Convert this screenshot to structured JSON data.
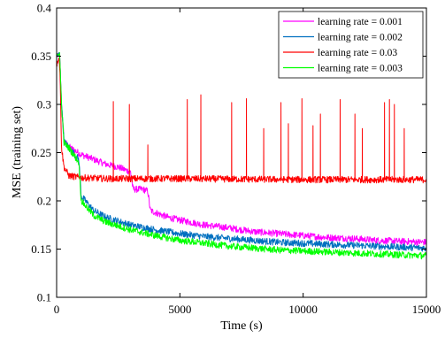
{
  "chart_data": {
    "type": "line",
    "title": "",
    "xlabel": "Time (s)",
    "ylabel": "MSE (training set)",
    "xlim": [
      0,
      15000
    ],
    "ylim": [
      0.1,
      0.4
    ],
    "xticks": [
      0,
      5000,
      10000,
      15000
    ],
    "yticks": [
      0.1,
      0.15,
      0.2,
      0.25,
      0.3,
      0.35,
      0.4
    ],
    "xtick_labels": [
      "0",
      "5000",
      "10000",
      "15000"
    ],
    "ytick_labels": [
      "0.1",
      "0.15",
      "0.2",
      "0.25",
      "0.3",
      "0.35",
      "0.4"
    ],
    "grid": false,
    "legend_position": "top-right",
    "series": [
      {
        "name": "learning rate = 0.001",
        "color": "#ff00ff",
        "noise": 0.0035,
        "points": [
          [
            0,
            0.35
          ],
          [
            120,
            0.352
          ],
          [
            200,
            0.3
          ],
          [
            300,
            0.262
          ],
          [
            500,
            0.256
          ],
          [
            1000,
            0.248
          ],
          [
            1500,
            0.243
          ],
          [
            2000,
            0.238
          ],
          [
            2500,
            0.235
          ],
          [
            3000,
            0.23
          ],
          [
            3100,
            0.212
          ],
          [
            3500,
            0.212
          ],
          [
            3700,
            0.21
          ],
          [
            3800,
            0.19
          ],
          [
            4500,
            0.183
          ],
          [
            5000,
            0.18
          ],
          [
            6000,
            0.175
          ],
          [
            7000,
            0.172
          ],
          [
            8000,
            0.168
          ],
          [
            9000,
            0.166
          ],
          [
            10000,
            0.164
          ],
          [
            11000,
            0.162
          ],
          [
            12000,
            0.161
          ],
          [
            13000,
            0.159
          ],
          [
            14000,
            0.158
          ],
          [
            15000,
            0.157
          ]
        ]
      },
      {
        "name": "learning rate = 0.002",
        "color": "#0070c0",
        "noise": 0.0035,
        "points": [
          [
            0,
            0.35
          ],
          [
            120,
            0.353
          ],
          [
            200,
            0.3
          ],
          [
            300,
            0.262
          ],
          [
            500,
            0.255
          ],
          [
            900,
            0.243
          ],
          [
            1000,
            0.205
          ],
          [
            1500,
            0.19
          ],
          [
            2000,
            0.183
          ],
          [
            3000,
            0.175
          ],
          [
            4000,
            0.17
          ],
          [
            5000,
            0.166
          ],
          [
            6000,
            0.163
          ],
          [
            7000,
            0.161
          ],
          [
            8000,
            0.159
          ],
          [
            9000,
            0.157
          ],
          [
            10000,
            0.156
          ],
          [
            11000,
            0.155
          ],
          [
            12000,
            0.154
          ],
          [
            13000,
            0.153
          ],
          [
            14000,
            0.152
          ],
          [
            15000,
            0.151
          ]
        ]
      },
      {
        "name": "learning rate = 0.03",
        "color": "#ff0000",
        "noise": 0.0035,
        "points": [
          [
            0,
            0.34
          ],
          [
            100,
            0.35
          ],
          [
            140,
            0.33
          ],
          [
            200,
            0.255
          ],
          [
            300,
            0.235
          ],
          [
            500,
            0.226
          ],
          [
            1000,
            0.224
          ],
          [
            2000,
            0.223
          ],
          [
            5000,
            0.223
          ],
          [
            10000,
            0.222
          ],
          [
            15000,
            0.222
          ]
        ],
        "spikes": [
          [
            2300,
            0.303
          ],
          [
            2950,
            0.3
          ],
          [
            3700,
            0.258
          ],
          [
            5300,
            0.305
          ],
          [
            5850,
            0.31
          ],
          [
            7100,
            0.302
          ],
          [
            7700,
            0.306
          ],
          [
            8400,
            0.275
          ],
          [
            9100,
            0.302
          ],
          [
            9400,
            0.28
          ],
          [
            9950,
            0.306
          ],
          [
            10400,
            0.278
          ],
          [
            10700,
            0.29
          ],
          [
            11500,
            0.305
          ],
          [
            12100,
            0.29
          ],
          [
            12400,
            0.275
          ],
          [
            13300,
            0.302
          ],
          [
            13500,
            0.305
          ],
          [
            13700,
            0.3
          ],
          [
            14100,
            0.275
          ]
        ]
      },
      {
        "name": "learning rate = 0.003",
        "color": "#00ff00",
        "noise": 0.0035,
        "points": [
          [
            0,
            0.35
          ],
          [
            120,
            0.353
          ],
          [
            200,
            0.3
          ],
          [
            300,
            0.26
          ],
          [
            500,
            0.255
          ],
          [
            900,
            0.24
          ],
          [
            1000,
            0.2
          ],
          [
            1500,
            0.185
          ],
          [
            2000,
            0.178
          ],
          [
            3000,
            0.17
          ],
          [
            4000,
            0.164
          ],
          [
            5000,
            0.159
          ],
          [
            6000,
            0.156
          ],
          [
            7000,
            0.153
          ],
          [
            8000,
            0.151
          ],
          [
            9000,
            0.149
          ],
          [
            10000,
            0.148
          ],
          [
            11000,
            0.147
          ],
          [
            12000,
            0.146
          ],
          [
            13000,
            0.145
          ],
          [
            14000,
            0.144
          ],
          [
            15000,
            0.143
          ]
        ]
      }
    ]
  }
}
